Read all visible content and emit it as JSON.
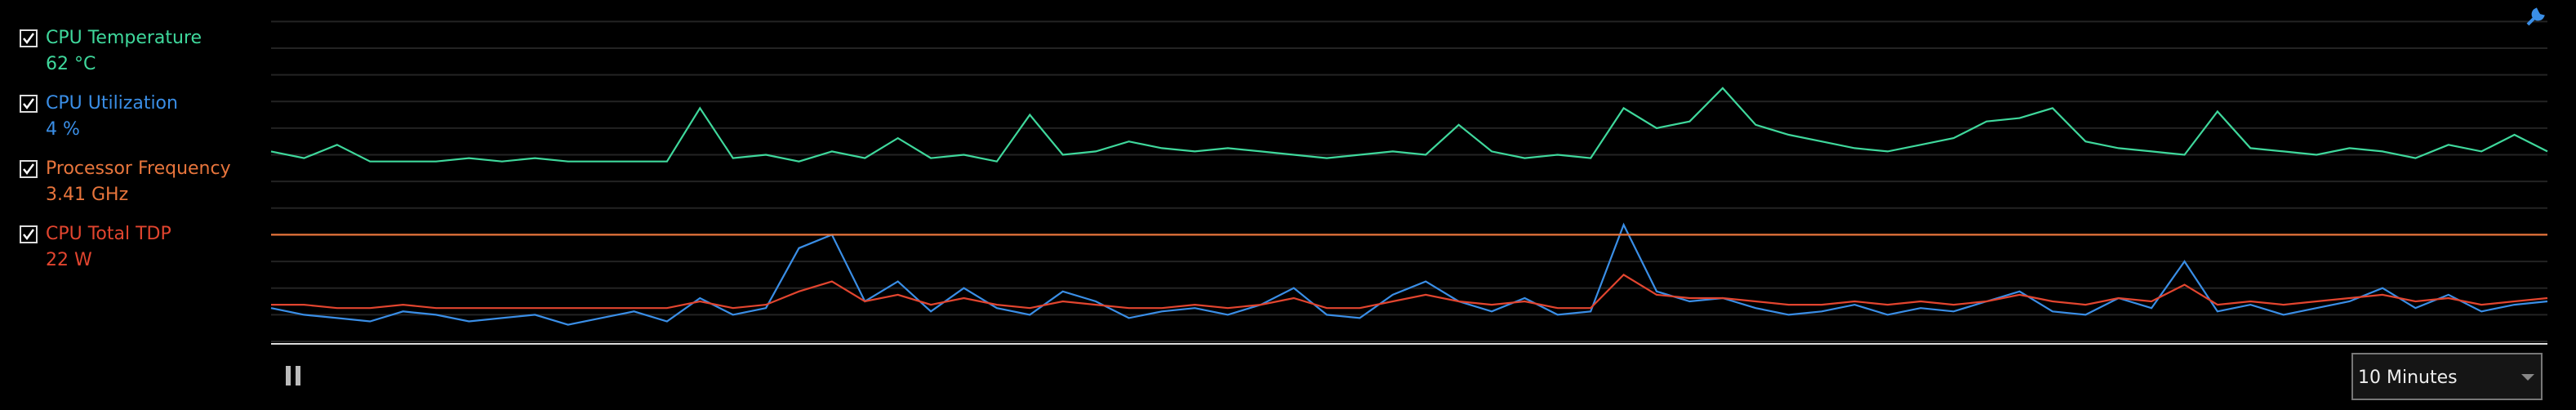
{
  "chart_data": {
    "type": "line",
    "ylim": [
      0,
      100
    ],
    "yticks": [
      0,
      8,
      16,
      24,
      32,
      40,
      48,
      56,
      64,
      72,
      80,
      88,
      96
    ],
    "grid": true,
    "time_range": "10 Minutes",
    "series": [
      {
        "name": "CPU Temperature",
        "reading": "62 °C",
        "checked": true,
        "color": "#3fd89c",
        "values": [
          57,
          55,
          59,
          54,
          54,
          54,
          55,
          54,
          55,
          54,
          54,
          54,
          54,
          70,
          55,
          56,
          54,
          57,
          55,
          61,
          55,
          56,
          54,
          68,
          56,
          57,
          60,
          58,
          57,
          58,
          57,
          56,
          55,
          56,
          57,
          56,
          65,
          57,
          55,
          56,
          55,
          70,
          64,
          66,
          76,
          65,
          62,
          60,
          58,
          57,
          59,
          61,
          66,
          67,
          70,
          60,
          58,
          57,
          56,
          69,
          58,
          57,
          56,
          58,
          57,
          55,
          59,
          57,
          62,
          57
        ]
      },
      {
        "name": "CPU Utilization",
        "reading": "4 %",
        "checked": true,
        "color": "#3a8ee6",
        "values": [
          10,
          8,
          7,
          6,
          9,
          8,
          6,
          7,
          8,
          5,
          7,
          9,
          6,
          13,
          8,
          10,
          28,
          32,
          12,
          18,
          9,
          16,
          10,
          8,
          15,
          12,
          7,
          9,
          10,
          8,
          11,
          16,
          8,
          7,
          14,
          18,
          12,
          9,
          13,
          8,
          9,
          35,
          15,
          12,
          13,
          10,
          8,
          9,
          11,
          8,
          10,
          9,
          12,
          15,
          9,
          8,
          13,
          10,
          24,
          9,
          11,
          8,
          10,
          12,
          16,
          10,
          14,
          9,
          11,
          12
        ]
      },
      {
        "name": "Processor Frequency",
        "reading": "3.41 GHz",
        "checked": true,
        "color": "#e8753c",
        "values": [
          32,
          32,
          32,
          32,
          32,
          32,
          32,
          32,
          32,
          32,
          32,
          32,
          32,
          32,
          32,
          32,
          32,
          32,
          32,
          32,
          32,
          32,
          32,
          32,
          32,
          32,
          32,
          32,
          32,
          32,
          32,
          32,
          32,
          32,
          32,
          32,
          32,
          32,
          32,
          32,
          32,
          32,
          32,
          32,
          32,
          32,
          32,
          32,
          32,
          32,
          32,
          32,
          32,
          32,
          32,
          32,
          32,
          32,
          32,
          32,
          32,
          32,
          32,
          32,
          32,
          32,
          32,
          32,
          32,
          32
        ]
      },
      {
        "name": "CPU Total TDP",
        "reading": "22 W",
        "checked": true,
        "color": "#e2452f",
        "values": [
          11,
          11,
          10,
          10,
          11,
          10,
          10,
          10,
          10,
          10,
          10,
          10,
          10,
          12,
          10,
          11,
          15,
          18,
          12,
          14,
          11,
          13,
          11,
          10,
          12,
          11,
          10,
          10,
          11,
          10,
          11,
          13,
          10,
          10,
          12,
          14,
          12,
          11,
          12,
          10,
          10,
          20,
          14,
          13,
          13,
          12,
          11,
          11,
          12,
          11,
          12,
          11,
          12,
          14,
          12,
          11,
          13,
          12,
          17,
          11,
          12,
          11,
          12,
          13,
          14,
          12,
          13,
          11,
          12,
          13
        ]
      }
    ]
  }
}
